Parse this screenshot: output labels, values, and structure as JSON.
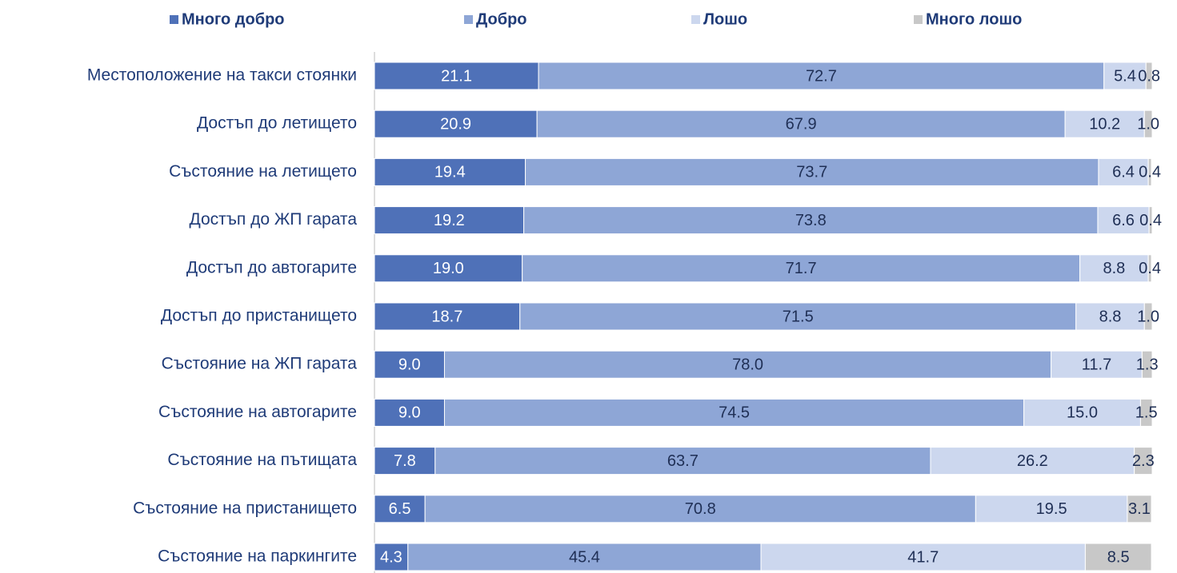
{
  "chart_data": {
    "type": "stacked_barh",
    "categories": [
      "Местоположение на такси стоянки",
      "Достъп до летището",
      "Състояние на летището",
      "Достъп до ЖП гарата",
      "Достъп до автогарите",
      "Достъп до пристанището",
      "Състояние на ЖП гарата",
      "Състояние на автогарите",
      "Състояние на пътищата",
      "Състояние на пристанището",
      "Състояние на паркингите"
    ],
    "series": [
      {
        "name": "Много добро",
        "color": "#4f71b8",
        "values": [
          21.1,
          20.9,
          19.4,
          19.2,
          19.0,
          18.7,
          9.0,
          9.0,
          7.8,
          6.5,
          4.3
        ],
        "value_labels": [
          "21.1",
          "20.9",
          "19.4",
          "19.2",
          "19.0",
          "18.7",
          "9.0",
          "9.0",
          "7.8",
          "6.5",
          "4.3"
        ]
      },
      {
        "name": "Добро",
        "color": "#8ea6d6",
        "values": [
          72.7,
          67.9,
          73.7,
          73.8,
          71.7,
          71.5,
          78.0,
          74.5,
          63.7,
          70.8,
          45.4
        ],
        "value_labels": [
          "72.7",
          "67.9",
          "73.7",
          "73.8",
          "71.7",
          "71.5",
          "78.0",
          "74.5",
          "63.7",
          "70.8",
          "45.4"
        ]
      },
      {
        "name": "Лошо",
        "color": "#ccd7ee",
        "values": [
          5.4,
          10.2,
          6.4,
          6.6,
          8.8,
          8.8,
          11.7,
          15.0,
          26.2,
          19.5,
          41.7
        ],
        "value_labels": [
          "5.4",
          "10.2",
          "6.4",
          "6.6",
          "8.8",
          "8.8",
          "11.7",
          "15.0",
          "26.2",
          "19.5",
          "41.7"
        ]
      },
      {
        "name": "Много лошо",
        "color": "#c8c8c8",
        "values": [
          0.8,
          1.0,
          0.4,
          0.4,
          0.4,
          1.0,
          1.3,
          1.5,
          2.3,
          3.1,
          8.5
        ],
        "value_labels": [
          "0.8",
          "1.0",
          "0.4",
          "0.4",
          "0.4",
          "1.0",
          "1.3",
          "1.5",
          "2.3",
          "3.1",
          "8.5"
        ]
      }
    ],
    "xlim": [
      0,
      100
    ],
    "legend": "top"
  }
}
